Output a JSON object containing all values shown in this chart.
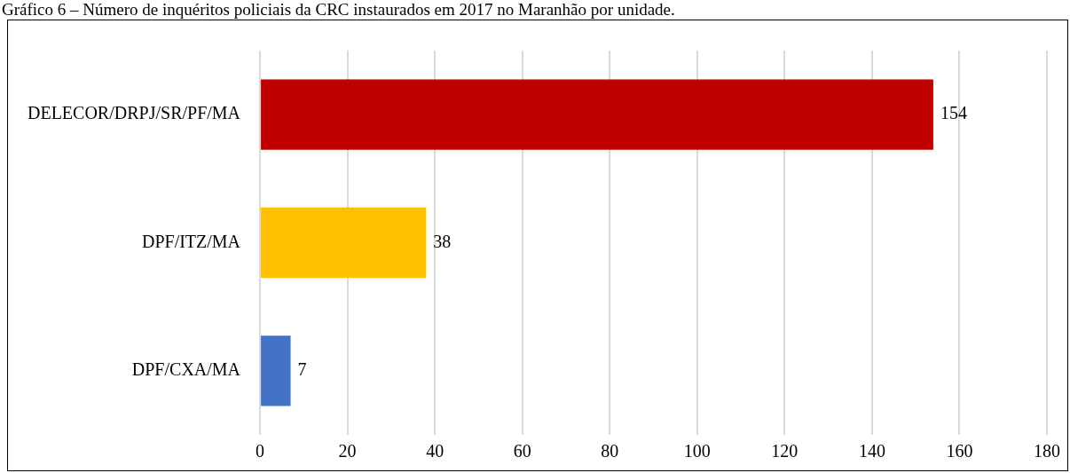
{
  "chart_data": {
    "type": "bar",
    "orientation": "horizontal",
    "title": "Gráfico 6 – Número de inquéritos policiais da CRC instaurados em 2017 no Maranhão por unidade.",
    "categories": [
      "DELECOR/DRPJ/SR/PF/MA",
      "DPF/ITZ/MA",
      "DPF/CXA/MA"
    ],
    "values": [
      154,
      38,
      7
    ],
    "colors": [
      "#c00000",
      "#ffc000",
      "#4472c4"
    ],
    "xlim": [
      0,
      180
    ],
    "xticks": [
      0,
      20,
      40,
      60,
      80,
      100,
      120,
      140,
      160,
      180
    ],
    "grid": "x",
    "data_labels": true,
    "legend": false
  }
}
